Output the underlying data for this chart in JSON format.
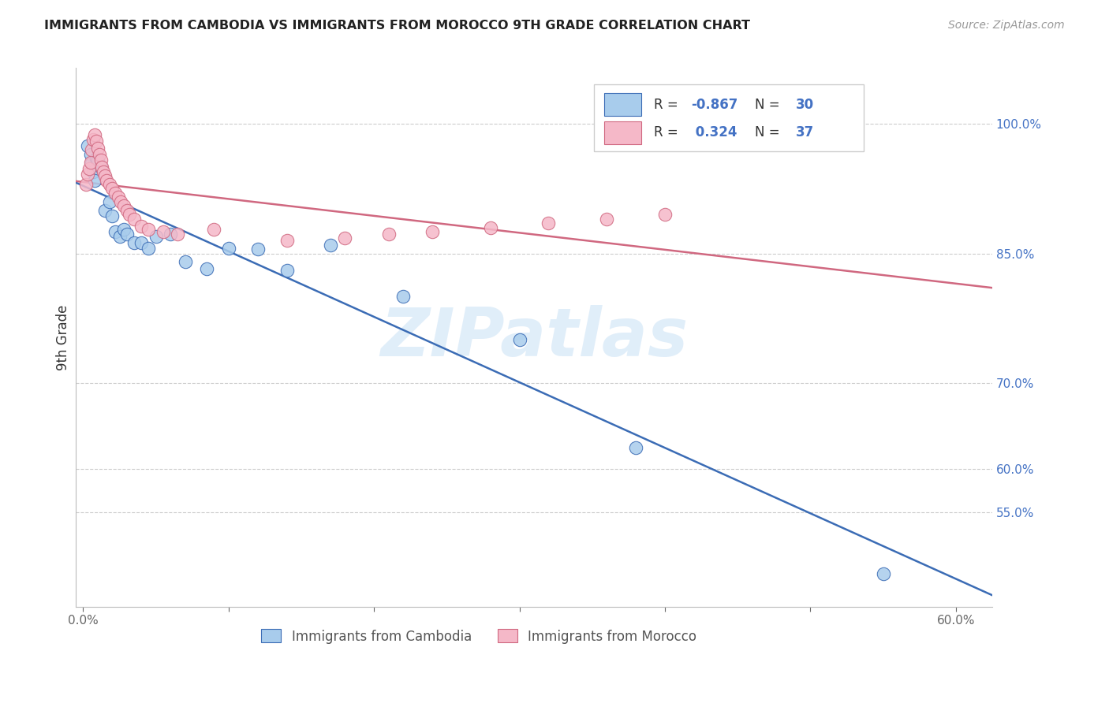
{
  "title": "IMMIGRANTS FROM CAMBODIA VS IMMIGRANTS FROM MOROCCO 9TH GRADE CORRELATION CHART",
  "source": "Source: ZipAtlas.com",
  "xlabel_bottom": "Immigrants from Cambodia",
  "xlabel_bottom2": "Immigrants from Morocco",
  "ylabel": "9th Grade",
  "xlim": [
    -0.005,
    0.625
  ],
  "ylim": [
    0.44,
    1.065
  ],
  "color_cambodia": "#A8CCEC",
  "color_morocco": "#F5B8C8",
  "line_color_cambodia": "#3B6CB5",
  "line_color_morocco": "#D06880",
  "legend_R_cambodia": "-0.867",
  "legend_N_cambodia": "30",
  "legend_R_morocco": "0.324",
  "legend_N_morocco": "37",
  "watermark": "ZIPatlas",
  "background_color": "#ffffff",
  "ytick_vals": [
    0.55,
    0.6,
    0.7,
    0.85,
    1.0
  ],
  "ytick_labels": [
    "55.0%",
    "60.0%",
    "70.0%",
    "85.0%",
    "100.0%"
  ],
  "xtick_vals": [
    0.0,
    0.1,
    0.2,
    0.3,
    0.4,
    0.5,
    0.6
  ],
  "xtick_labels": [
    "0.0%",
    "",
    "",
    "",
    "",
    "",
    "60.0%"
  ],
  "cam_x": [
    0.003,
    0.005,
    0.006,
    0.007,
    0.008,
    0.009,
    0.01,
    0.012,
    0.015,
    0.018,
    0.02,
    0.022,
    0.025,
    0.028,
    0.03,
    0.035,
    0.04,
    0.045,
    0.05,
    0.06,
    0.07,
    0.085,
    0.1,
    0.12,
    0.14,
    0.17,
    0.22,
    0.3,
    0.38,
    0.55
  ],
  "cam_y": [
    0.975,
    0.965,
    0.955,
    0.945,
    0.935,
    0.96,
    0.958,
    0.95,
    0.9,
    0.91,
    0.893,
    0.875,
    0.87,
    0.878,
    0.872,
    0.862,
    0.862,
    0.856,
    0.87,
    0.872,
    0.84,
    0.832,
    0.856,
    0.855,
    0.83,
    0.86,
    0.8,
    0.75,
    0.625,
    0.478
  ],
  "mor_x": [
    0.002,
    0.003,
    0.004,
    0.005,
    0.006,
    0.007,
    0.008,
    0.009,
    0.01,
    0.011,
    0.012,
    0.013,
    0.014,
    0.015,
    0.016,
    0.018,
    0.02,
    0.022,
    0.024,
    0.026,
    0.028,
    0.03,
    0.032,
    0.035,
    0.04,
    0.045,
    0.055,
    0.065,
    0.09,
    0.14,
    0.18,
    0.21,
    0.24,
    0.28,
    0.32,
    0.36,
    0.4
  ],
  "mor_y": [
    0.93,
    0.942,
    0.948,
    0.956,
    0.97,
    0.982,
    0.988,
    0.98,
    0.972,
    0.965,
    0.958,
    0.95,
    0.945,
    0.94,
    0.935,
    0.93,
    0.925,
    0.92,
    0.915,
    0.91,
    0.905,
    0.9,
    0.895,
    0.89,
    0.882,
    0.878,
    0.875,
    0.872,
    0.878,
    0.865,
    0.868,
    0.872,
    0.875,
    0.88,
    0.885,
    0.89,
    0.895
  ]
}
